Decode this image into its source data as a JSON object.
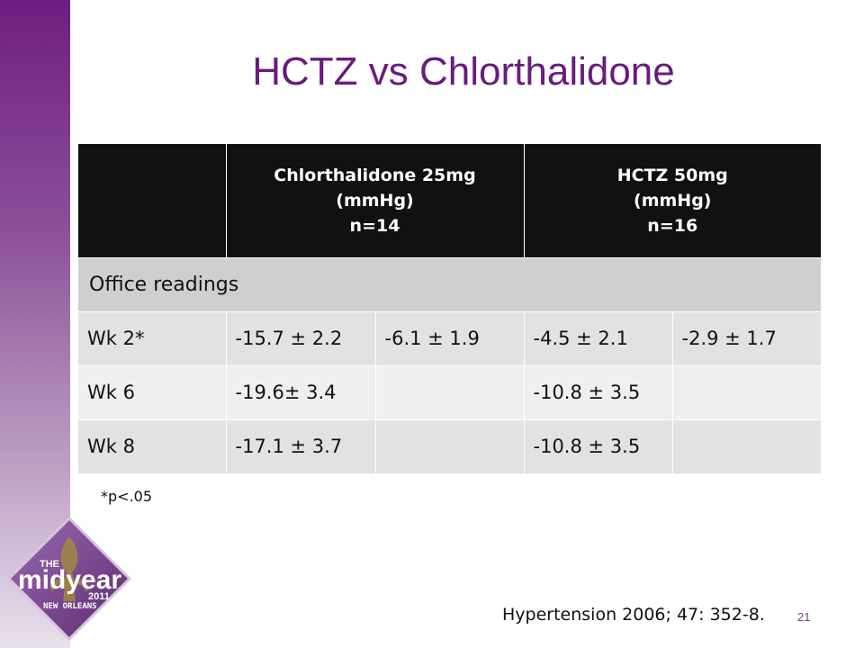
{
  "slide": {
    "title": "HCTZ vs Chlorthalidone",
    "footnote": "*p<.05",
    "citation": "Hypertension 2006; 47: 352-8.",
    "page_number": "21"
  },
  "table": {
    "headers": {
      "col1": [
        "Chlorthalidone 25mg",
        "(mmHg)",
        "n=14"
      ],
      "col2": [
        "HCTZ 50mg",
        "(mmHg)",
        "n=16"
      ]
    },
    "section_label": "Office readings",
    "rows": [
      {
        "label": "Wk 2*",
        "c1": "-15.7 ± 2.2",
        "c2": "-6.1 ± 1.9",
        "c3": "-4.5  ± 2.1",
        "c4": "-2.9 ± 1.7"
      },
      {
        "label": "Wk 6",
        "c1": "-19.6± 3.4",
        "c2": "",
        "c3": "-10.8 ± 3.5",
        "c4": ""
      },
      {
        "label": "Wk 8",
        "c1": "-17.1 ± 3.7",
        "c2": "",
        "c3": "-10.8  ± 3.5",
        "c4": ""
      }
    ]
  },
  "logo": {
    "line1": "THE",
    "line2": "midyear",
    "line3": "2011",
    "line4": "NEW ORLEANS"
  },
  "colors": {
    "title": "#6a1b7e",
    "sidebar_top": "#6d1f7f",
    "header_bg": "#111111",
    "section_bg": "#cfcfcf"
  }
}
